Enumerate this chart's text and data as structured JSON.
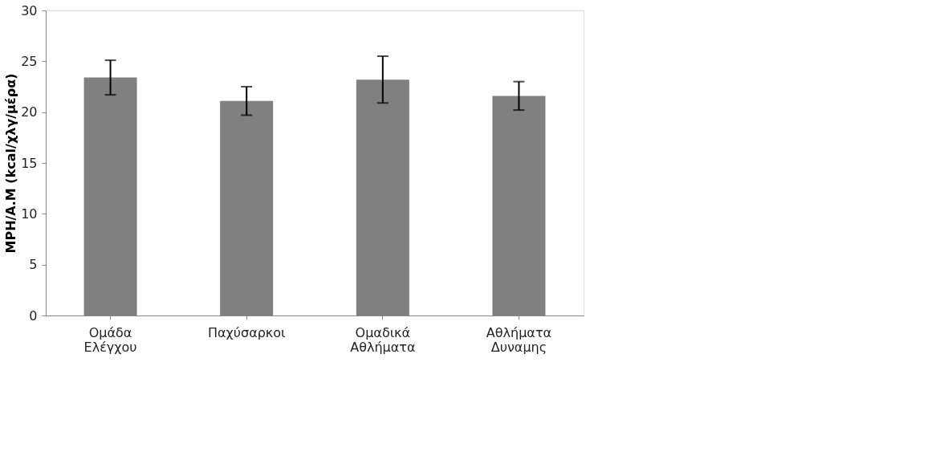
{
  "chart_data": {
    "type": "bar",
    "ylabel": "ΜΡΗ/Α.Μ (kcal/χλγ/μέρα)",
    "categories": [
      "Ομάδα Ελέγχου",
      "Παχύσαρκοι",
      "Ομαδικά Αθλήματα",
      "Αθλήματα Δυναμης"
    ],
    "values": [
      23.4,
      21.1,
      23.2,
      21.6
    ],
    "errors": [
      1.7,
      1.4,
      2.3,
      1.4
    ],
    "color": "#808080",
    "ylim": [
      0,
      30
    ],
    "yticks": [
      0,
      5,
      10,
      15,
      20,
      25,
      30
    ],
    "grid": false
  }
}
